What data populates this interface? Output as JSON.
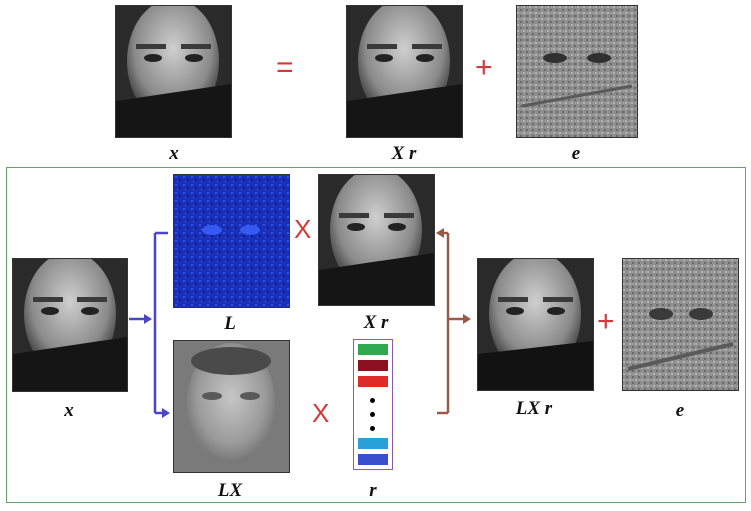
{
  "top_row": {
    "labels": {
      "x": "x",
      "xr": "X r",
      "e": "e"
    },
    "operators": {
      "equals": "=",
      "plus": "+"
    }
  },
  "bottom_panel": {
    "labels": {
      "x": "x",
      "L": "L",
      "xr": "X r",
      "LX": "LX",
      "r": "r",
      "LXr": "LX r",
      "e": "e"
    },
    "operators": {
      "times1": "X",
      "times2": "X",
      "plus": "+"
    },
    "vector_r": {
      "cell_colors": [
        "#2fa84f",
        "#8b1020",
        "#e02a2a",
        "#2aa0d8",
        "#3a4fd0"
      ]
    }
  },
  "colors": {
    "operator": "#d23a3a",
    "frame": "#6aa16a",
    "arrow_blue": "#4a46c8",
    "arrow_brown": "#9a5a4a",
    "vector_border": "#8a5bb0"
  }
}
